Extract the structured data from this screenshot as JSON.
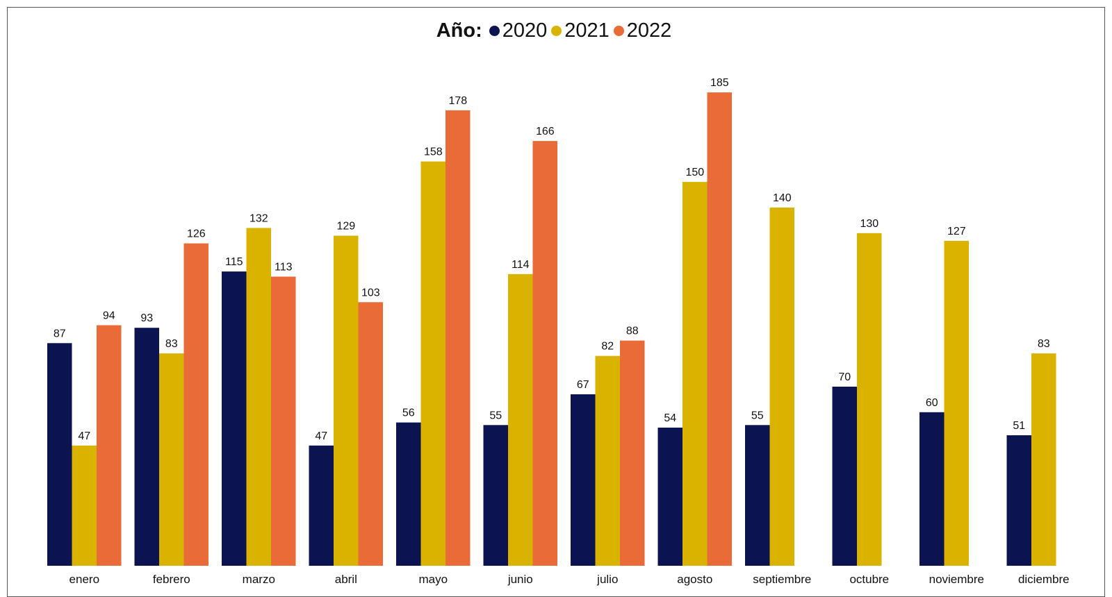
{
  "legend": {
    "title": "Año:"
  },
  "chart_data": {
    "type": "bar",
    "legend_position": "top",
    "grid": false,
    "categories": [
      "enero",
      "febrero",
      "marzo",
      "abril",
      "mayo",
      "junio",
      "julio",
      "agosto",
      "septiembre",
      "octubre",
      "noviembre",
      "diciembre"
    ],
    "series": [
      {
        "name": "2020",
        "color": "#0b1450",
        "values": [
          87,
          93,
          115,
          47,
          56,
          55,
          67,
          54,
          55,
          70,
          60,
          51
        ]
      },
      {
        "name": "2021",
        "color": "#d9b300",
        "values": [
          47,
          83,
          132,
          129,
          158,
          114,
          82,
          150,
          140,
          130,
          127,
          83
        ]
      },
      {
        "name": "2022",
        "color": "#e86b38",
        "values": [
          94,
          126,
          113,
          103,
          178,
          166,
          88,
          185,
          null,
          null,
          null,
          null
        ]
      }
    ],
    "ylim": [
      0,
      185
    ]
  }
}
